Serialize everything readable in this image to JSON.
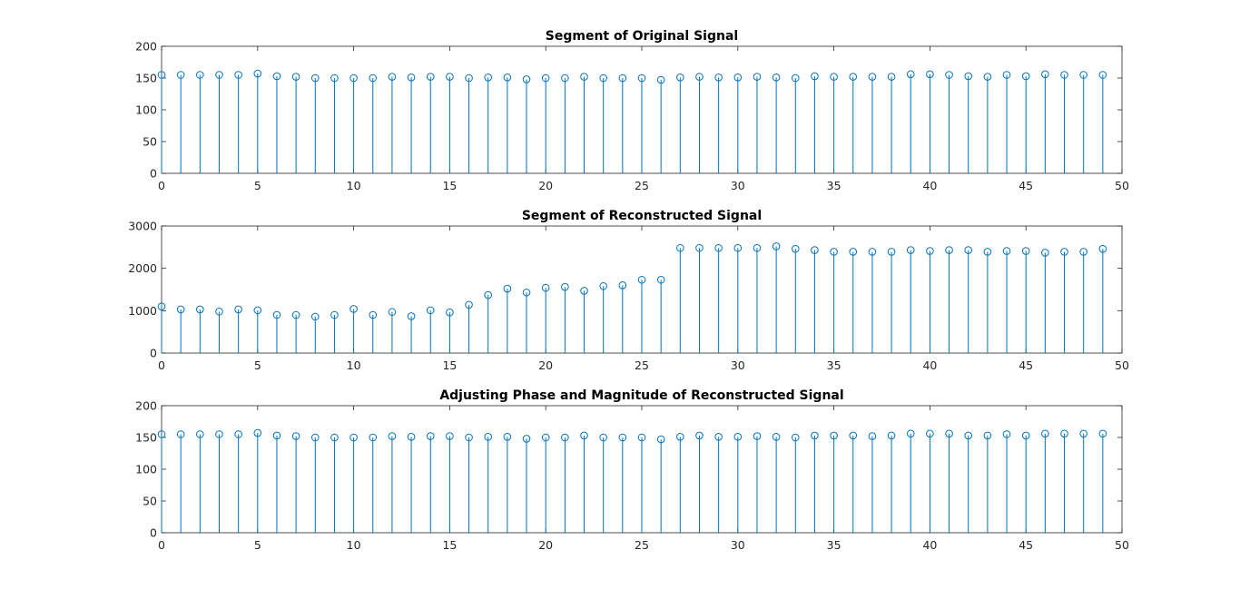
{
  "figure": {
    "background": "#ffffff",
    "stem_color": "#0072BD",
    "axis_color": "#262626"
  },
  "chart_data": [
    {
      "type": "stem",
      "title": "Segment of Original Signal",
      "xlabel": "",
      "ylabel": "",
      "xlim": [
        0,
        50
      ],
      "ylim": [
        0,
        200
      ],
      "xticks": [
        0,
        5,
        10,
        15,
        20,
        25,
        30,
        35,
        40,
        45,
        50
      ],
      "yticks": [
        0,
        50,
        100,
        150,
        200
      ],
      "grid": false,
      "x": [
        0,
        1,
        2,
        3,
        4,
        5,
        6,
        7,
        8,
        9,
        10,
        11,
        12,
        13,
        14,
        15,
        16,
        17,
        18,
        19,
        20,
        21,
        22,
        23,
        24,
        25,
        26,
        27,
        28,
        29,
        30,
        31,
        32,
        33,
        34,
        35,
        36,
        37,
        38,
        39,
        40,
        41,
        42,
        43,
        44,
        45,
        46,
        47,
        48,
        49
      ],
      "values": [
        155,
        155,
        155,
        155,
        155,
        157,
        153,
        152,
        150,
        150,
        150,
        150,
        152,
        151,
        152,
        152,
        150,
        151,
        151,
        148,
        150,
        150,
        152,
        150,
        150,
        150,
        147,
        151,
        152,
        151,
        151,
        152,
        151,
        150,
        153,
        152,
        152,
        152,
        152,
        156,
        156,
        155,
        153,
        152,
        155,
        153,
        156,
        155,
        155,
        155
      ]
    },
    {
      "type": "stem",
      "title": "Segment of Reconstructed Signal",
      "xlabel": "",
      "ylabel": "",
      "xlim": [
        0,
        50
      ],
      "ylim": [
        0,
        3000
      ],
      "xticks": [
        0,
        5,
        10,
        15,
        20,
        25,
        30,
        35,
        40,
        45,
        50
      ],
      "yticks": [
        0,
        1000,
        2000,
        3000
      ],
      "grid": false,
      "x": [
        0,
        1,
        2,
        3,
        4,
        5,
        6,
        7,
        8,
        9,
        10,
        11,
        12,
        13,
        14,
        15,
        16,
        17,
        18,
        19,
        20,
        21,
        22,
        23,
        24,
        25,
        26,
        27,
        28,
        29,
        30,
        31,
        32,
        33,
        34,
        35,
        36,
        37,
        38,
        39,
        40,
        41,
        42,
        43,
        44,
        45,
        46,
        47,
        48,
        49
      ],
      "values": [
        1100,
        1030,
        1030,
        980,
        1030,
        1010,
        900,
        900,
        860,
        900,
        1040,
        900,
        970,
        870,
        1010,
        960,
        1140,
        1370,
        1520,
        1430,
        1540,
        1560,
        1470,
        1580,
        1600,
        1730,
        1730,
        2480,
        2480,
        2480,
        2480,
        2480,
        2520,
        2460,
        2430,
        2390,
        2390,
        2390,
        2390,
        2430,
        2410,
        2430,
        2430,
        2390,
        2410,
        2410,
        2370,
        2390,
        2390,
        2460
      ]
    },
    {
      "type": "stem",
      "title": "Adjusting Phase and Magnitude of Reconstructed Signal",
      "xlabel": "",
      "ylabel": "",
      "xlim": [
        0,
        50
      ],
      "ylim": [
        0,
        200
      ],
      "xticks": [
        0,
        5,
        10,
        15,
        20,
        25,
        30,
        35,
        40,
        45,
        50
      ],
      "yticks": [
        0,
        50,
        100,
        150,
        200
      ],
      "grid": false,
      "x": [
        0,
        1,
        2,
        3,
        4,
        5,
        6,
        7,
        8,
        9,
        10,
        11,
        12,
        13,
        14,
        15,
        16,
        17,
        18,
        19,
        20,
        21,
        22,
        23,
        24,
        25,
        26,
        27,
        28,
        29,
        30,
        31,
        32,
        33,
        34,
        35,
        36,
        37,
        38,
        39,
        40,
        41,
        42,
        43,
        44,
        45,
        46,
        47,
        48,
        49
      ],
      "values": [
        155,
        155,
        155,
        155,
        155,
        157,
        153,
        152,
        150,
        150,
        150,
        150,
        152,
        151,
        152,
        152,
        150,
        151,
        151,
        148,
        150,
        150,
        153,
        150,
        150,
        150,
        147,
        151,
        153,
        151,
        151,
        152,
        151,
        150,
        153,
        153,
        153,
        152,
        153,
        156,
        156,
        156,
        153,
        153,
        155,
        153,
        156,
        156,
        156,
        156
      ]
    }
  ]
}
